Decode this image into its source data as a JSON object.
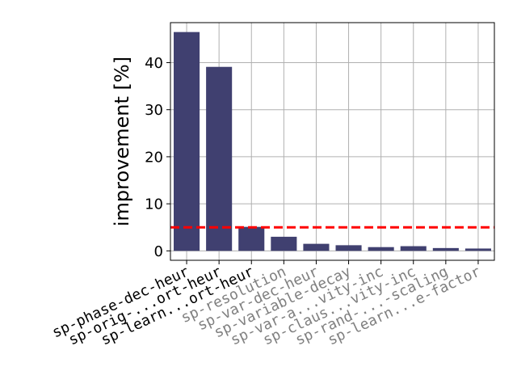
{
  "chart_data": {
    "type": "bar",
    "title": "",
    "xlabel": "",
    "ylabel": "improvement [%]",
    "ylim": [
      -2,
      48.5
    ],
    "yticks": [
      0,
      10,
      20,
      30,
      40
    ],
    "grid": true,
    "categories": [
      "sp-phase-dec-heur",
      "sp-orig-...ort-heur",
      "sp-learn...ort-heur",
      "sp-resolution",
      "sp-var-dec-heur",
      "sp-variable-decay",
      "sp-var-a...vity-inc",
      "sp-claus...vity-inc",
      "sp-rand-...-scaling",
      "sp-learn...e-factor"
    ],
    "values": [
      46.5,
      39.1,
      5.1,
      3.0,
      1.5,
      1.2,
      0.8,
      1.0,
      0.6,
      0.5
    ],
    "label_status": [
      "strong",
      "strong",
      "strong",
      "weak",
      "weak",
      "weak",
      "weak",
      "weak",
      "weak",
      "weak"
    ],
    "threshold": 5,
    "colors": {
      "bar": "#404070",
      "threshold_line": "#ff0000",
      "grid": "#b0b0b0",
      "label_strong": "#000000",
      "label_weak": "#808080"
    }
  }
}
